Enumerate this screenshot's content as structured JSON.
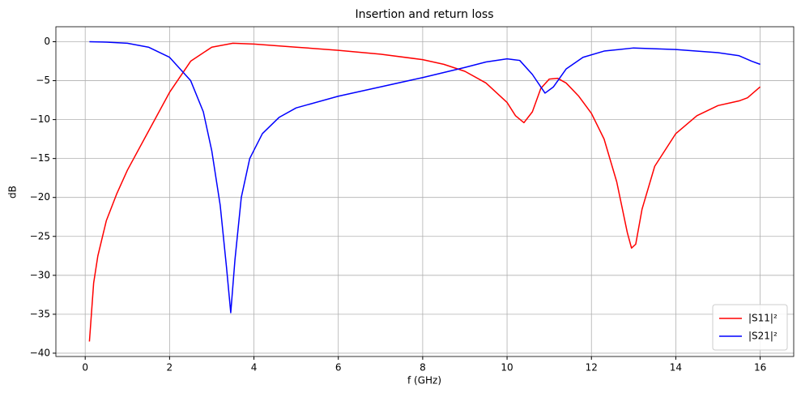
{
  "chart_data": {
    "type": "line",
    "title": "Insertion and return loss",
    "x_label": "f (GHz)",
    "y_label": "dB",
    "xlim": [
      -0.695,
      16.795
    ],
    "ylim": [
      -40.425,
      1.925
    ],
    "xticks": [
      0,
      2,
      4,
      6,
      8,
      10,
      12,
      14,
      16
    ],
    "yticks": [
      0,
      {
        "value": -5,
        "label": "−5"
      },
      {
        "value": -10,
        "label": "−10"
      },
      {
        "value": -15,
        "label": "−15"
      },
      {
        "value": -20,
        "label": "−20"
      },
      {
        "value": -25,
        "label": "−25"
      },
      {
        "value": -30,
        "label": "−30"
      },
      {
        "value": -35,
        "label": "−35"
      },
      {
        "value": -40,
        "label": "−40"
      }
    ],
    "grid": true,
    "legend": "lower right",
    "series": [
      {
        "name": "|S11|²",
        "color": "#ff0000",
        "x": [
          0.1,
          0.2,
          0.3,
          0.5,
          0.75,
          1.0,
          1.5,
          2.0,
          2.5,
          3.0,
          3.5,
          4.0,
          5.0,
          6.0,
          7.0,
          8.0,
          8.5,
          9.0,
          9.5,
          10.0,
          10.2,
          10.4,
          10.6,
          10.8,
          11.0,
          11.2,
          11.4,
          11.7,
          12.0,
          12.3,
          12.6,
          12.85,
          12.95,
          13.05,
          13.2,
          13.5,
          14.0,
          14.5,
          15.0,
          15.5,
          15.7,
          16.0
        ],
        "values": [
          -38.5,
          -31,
          -27.5,
          -23,
          -19.5,
          -16.5,
          -11.5,
          -6.5,
          -2.5,
          -0.7,
          -0.2,
          -0.3,
          -0.7,
          -1.1,
          -1.6,
          -2.3,
          -2.9,
          -3.8,
          -5.3,
          -7.8,
          -9.5,
          -10.4,
          -9,
          -6,
          -4.8,
          -4.7,
          -5.3,
          -7,
          -9.2,
          -12.5,
          -18,
          -24.5,
          -26.5,
          -26,
          -21.5,
          -16,
          -11.8,
          -9.5,
          -8.2,
          -7.6,
          -7.2,
          -5.8
        ]
      },
      {
        "name": "|S21|²",
        "color": "#0000ff",
        "x": [
          0.1,
          0.5,
          1.0,
          1.5,
          2.0,
          2.5,
          2.8,
          3.0,
          3.2,
          3.35,
          3.45,
          3.55,
          3.7,
          3.9,
          4.2,
          4.6,
          5.0,
          6.0,
          7.0,
          8.0,
          9.0,
          9.5,
          10.0,
          10.3,
          10.6,
          10.9,
          11.1,
          11.4,
          11.8,
          12.3,
          13.0,
          14.0,
          15.0,
          15.5,
          15.8,
          16.0
        ],
        "values": [
          0,
          -0.05,
          -0.2,
          -0.7,
          -2,
          -5,
          -9,
          -14,
          -21,
          -29,
          -34.8,
          -28,
          -20,
          -15,
          -11.8,
          -9.7,
          -8.5,
          -7,
          -5.8,
          -4.6,
          -3.3,
          -2.6,
          -2.2,
          -2.4,
          -4.2,
          -6.6,
          -5.8,
          -3.5,
          -2,
          -1.2,
          -0.8,
          -1,
          -1.4,
          -1.8,
          -2.5,
          -2.9
        ]
      }
    ]
  }
}
